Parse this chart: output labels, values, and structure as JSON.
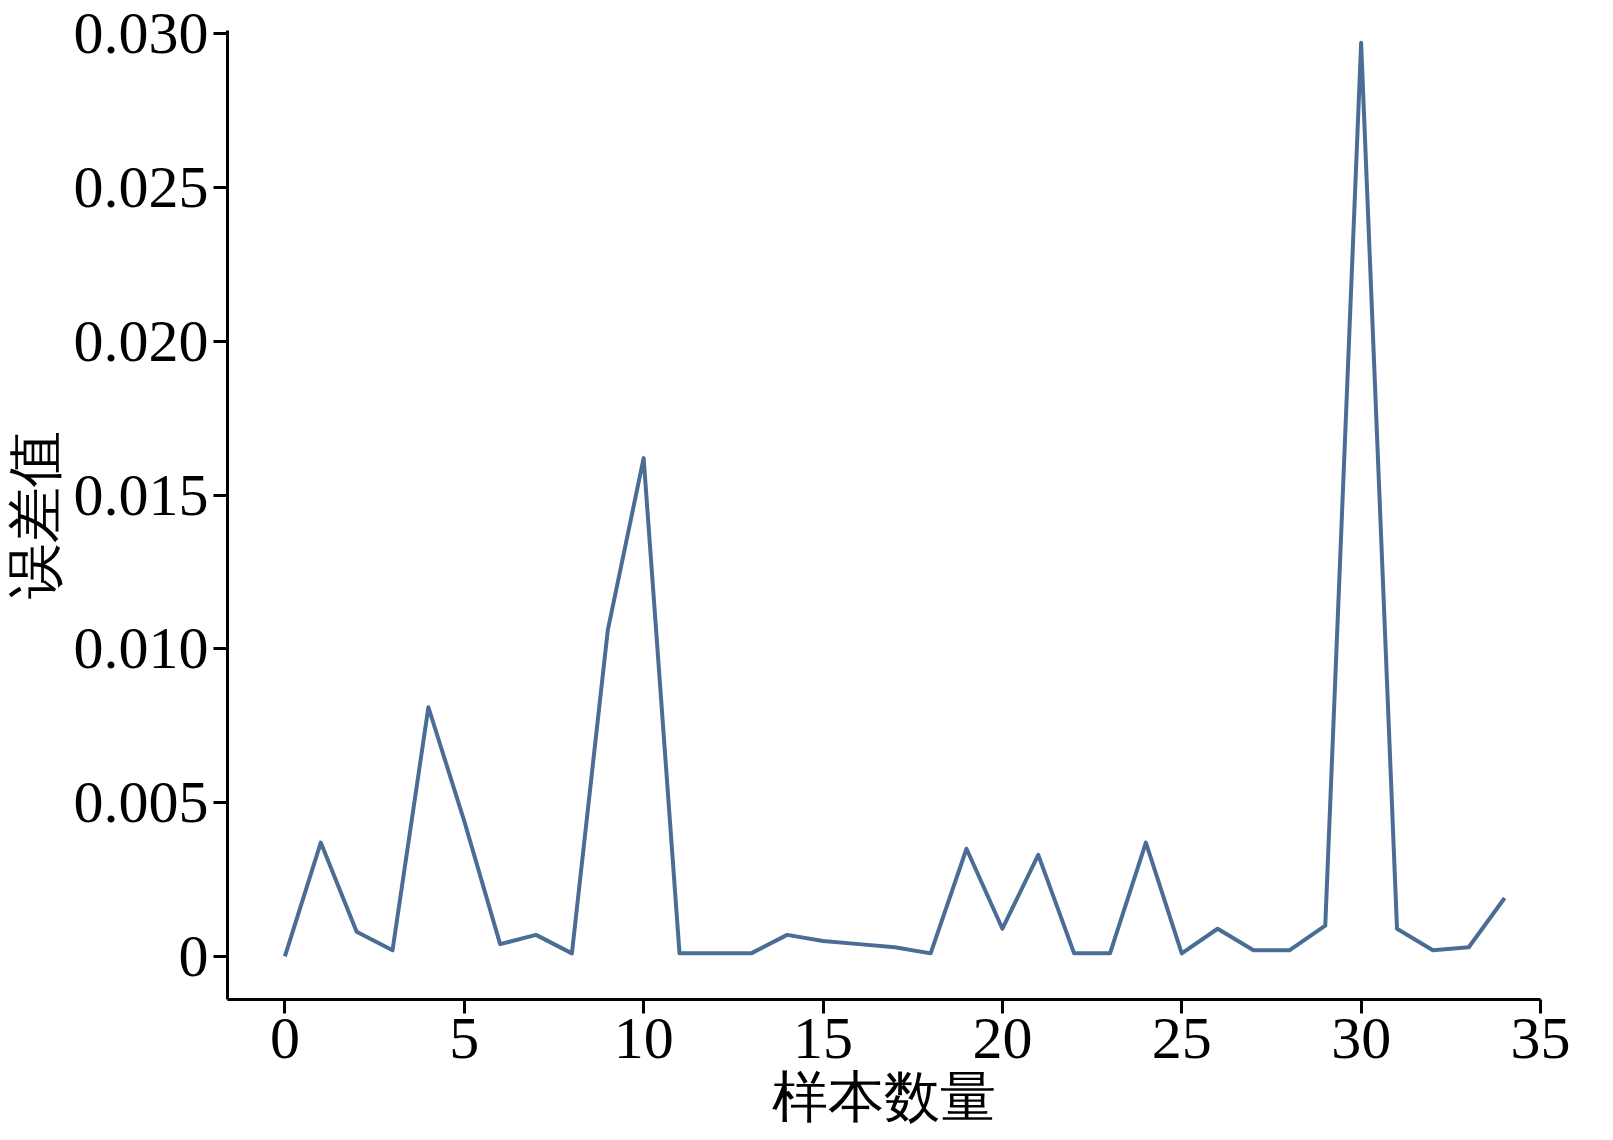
{
  "chart_data": {
    "type": "line",
    "xlabel": "样本数量",
    "ylabel": "误差值",
    "x": [
      0,
      1,
      2,
      3,
      4,
      5,
      6,
      7,
      8,
      9,
      10,
      11,
      12,
      13,
      14,
      15,
      16,
      17,
      18,
      19,
      20,
      21,
      22,
      23,
      24,
      25,
      26,
      27,
      28,
      29,
      30,
      31,
      32,
      33,
      34
    ],
    "series": [
      {
        "color": "#4a6d96",
        "values": [
          0.0,
          0.0037,
          0.0008,
          0.0002,
          0.0081,
          0.0044,
          0.0004,
          0.0007,
          0.0001,
          0.0106,
          0.0162,
          0.0001,
          0.0001,
          0.0001,
          0.0007,
          0.0005,
          0.0004,
          0.0003,
          0.0001,
          0.0035,
          0.0009,
          0.0033,
          0.0001,
          0.0001,
          0.0037,
          0.0001,
          0.0009,
          0.0002,
          0.0002,
          0.001,
          0.0297,
          0.0009,
          0.0002,
          0.0003,
          0.0019
        ]
      }
    ],
    "xlim": [
      -1.6,
      35
    ],
    "ylim": [
      -0.0014,
      0.0301
    ],
    "xticks": [
      0,
      5,
      10,
      15,
      20,
      25,
      30,
      35
    ],
    "yticks": [
      0,
      0.005,
      {
        "value": 0.01,
        "label": "0.010"
      },
      0.015,
      {
        "value": 0.02,
        "label": "0.020"
      },
      0.025,
      {
        "value": 0.03,
        "label": "0.030"
      }
    ],
    "grid": false,
    "marker": "none",
    "line_style": "solid"
  }
}
